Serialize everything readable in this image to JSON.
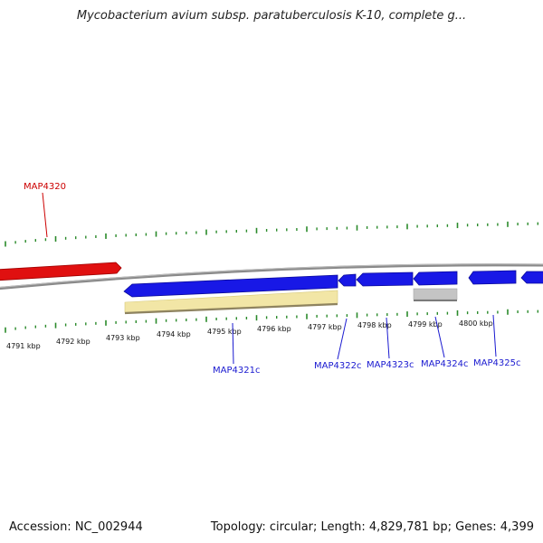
{
  "title": "Mycobacterium avium subsp. paratuberculosis K-10, complete g...",
  "footer": {
    "accession": "Accession: NC_002944",
    "summary": "Topology: circular; Length: 4,829,781 bp; Genes: 4,399"
  },
  "colors": {
    "forward_gene": "#e01010",
    "reverse_gene": "#1818e6",
    "cds_band": "#f2e6a6",
    "rna_band": "#c0c0c0",
    "tick": "#2a8a2a",
    "backbone": "#888888",
    "forward_label": "#cc0000",
    "reverse_label": "#1a1ad0"
  },
  "scale": {
    "unit": "kbp",
    "labels": [
      "4791 kbp",
      "4792 kbp",
      "4793 kbp",
      "4794 kbp",
      "4795 kbp",
      "4796 kbp",
      "4797 kbp",
      "4798 kbp",
      "4799 kbp",
      "4800 kbp"
    ]
  },
  "genes": [
    {
      "name": "MAP4320",
      "strand": "forward"
    },
    {
      "name": "MAP4321c",
      "strand": "reverse"
    },
    {
      "name": "MAP4322c",
      "strand": "reverse"
    },
    {
      "name": "MAP4323c",
      "strand": "reverse"
    },
    {
      "name": "MAP4324c",
      "strand": "reverse"
    },
    {
      "name": "MAP4325c",
      "strand": "reverse"
    }
  ]
}
